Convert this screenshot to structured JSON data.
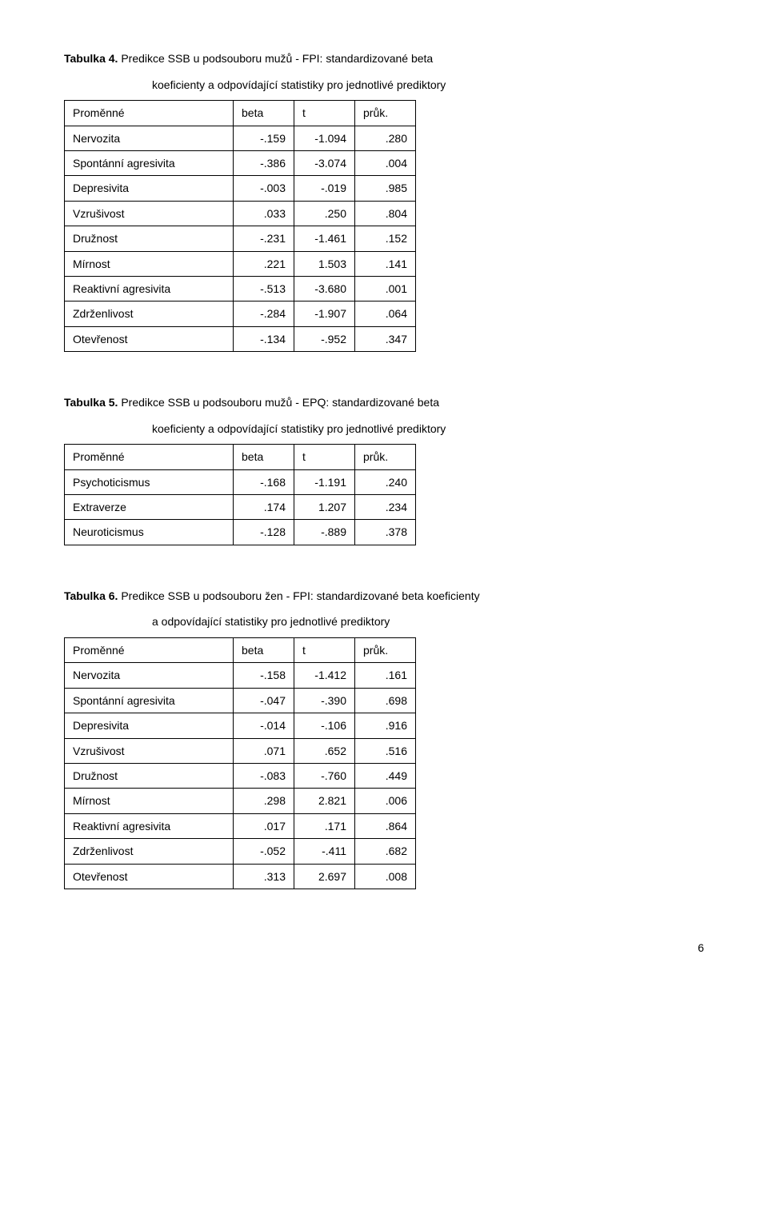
{
  "table4": {
    "caption_bold": "Tabulka 4.",
    "caption_rest": "  Predikce SSB u podsouboru mužů - FPI: standardizované beta",
    "caption_line2": "koeficienty a odpovídající statistiky pro jednotlivé prediktory",
    "headers": {
      "c0": "Proměnné",
      "c1": "beta",
      "c2": "t",
      "c3": "průk."
    },
    "rows": [
      {
        "c0": "Nervozita",
        "c1": "-.159",
        "c2": "-1.094",
        "c3": ".280"
      },
      {
        "c0": "Spontánní agresivita",
        "c1": "-.386",
        "c2": "-3.074",
        "c3": ".004"
      },
      {
        "c0": "Depresivita",
        "c1": "-.003",
        "c2": "-.019",
        "c3": ".985"
      },
      {
        "c0": "Vzrušivost",
        "c1": ".033",
        "c2": ".250",
        "c3": ".804"
      },
      {
        "c0": "Družnost",
        "c1": "-.231",
        "c2": "-1.461",
        "c3": ".152"
      },
      {
        "c0": "Mírnost",
        "c1": ".221",
        "c2": "1.503",
        "c3": ".141"
      },
      {
        "c0": "Reaktivní agresivita",
        "c1": "-.513",
        "c2": "-3.680",
        "c3": ".001"
      },
      {
        "c0": "Zdrženlivost",
        "c1": "-.284",
        "c2": "-1.907",
        "c3": ".064"
      },
      {
        "c0": "Otevřenost",
        "c1": "-.134",
        "c2": "-.952",
        "c3": ".347"
      }
    ]
  },
  "table5": {
    "caption_bold": "Tabulka 5.",
    "caption_rest": "  Predikce SSB u podsouboru mužů - EPQ: standardizované beta",
    "caption_line2": "koeficienty a odpovídající statistiky pro jednotlivé prediktory",
    "headers": {
      "c0": "Proměnné",
      "c1": "beta",
      "c2": "t",
      "c3": "průk."
    },
    "rows": [
      {
        "c0": "Psychoticismus",
        "c1": "-.168",
        "c2": "-1.191",
        "c3": ".240"
      },
      {
        "c0": "Extraverze",
        "c1": ".174",
        "c2": "1.207",
        "c3": ".234"
      },
      {
        "c0": "Neuroticismus",
        "c1": "-.128",
        "c2": "-.889",
        "c3": ".378"
      }
    ]
  },
  "table6": {
    "caption_bold": "Tabulka 6.",
    "caption_rest": "  Predikce SSB u podsouboru žen - FPI: standardizované beta koeficienty",
    "caption_line2": "a odpovídající statistiky pro jednotlivé prediktory",
    "headers": {
      "c0": "Proměnné",
      "c1": "beta",
      "c2": "t",
      "c3": "průk."
    },
    "rows": [
      {
        "c0": "Nervozita",
        "c1": "-.158",
        "c2": "-1.412",
        "c3": ".161"
      },
      {
        "c0": "Spontánní agresivita",
        "c1": "-.047",
        "c2": "-.390",
        "c3": ".698"
      },
      {
        "c0": "Depresivita",
        "c1": "-.014",
        "c2": "-.106",
        "c3": ".916"
      },
      {
        "c0": "Vzrušivost",
        "c1": ".071",
        "c2": ".652",
        "c3": ".516"
      },
      {
        "c0": "Družnost",
        "c1": "-.083",
        "c2": "-.760",
        "c3": ".449"
      },
      {
        "c0": "Mírnost",
        "c1": ".298",
        "c2": "2.821",
        "c3": ".006"
      },
      {
        "c0": "Reaktivní agresivita",
        "c1": ".017",
        "c2": ".171",
        "c3": ".864"
      },
      {
        "c0": "Zdrženlivost",
        "c1": "-.052",
        "c2": "-.411",
        "c3": ".682"
      },
      {
        "c0": "Otevřenost",
        "c1": ".313",
        "c2": "2.697",
        "c3": ".008"
      }
    ]
  },
  "page_number": "6"
}
